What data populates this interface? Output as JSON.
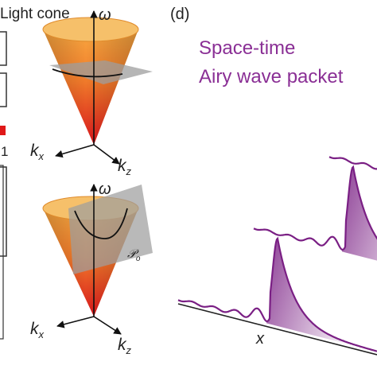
{
  "colors": {
    "packet_purple": "#7a1f84",
    "title_purple": "#8a2f95",
    "cone_top": "#f7a23a",
    "cone_bottom": "#dc1f1f",
    "plane_gray": "#9e9e9e",
    "colorbar_red": "#e01818"
  },
  "left_panel": {
    "light_cone_label": "Light cone",
    "omega_top": "ω",
    "kx_top": "k",
    "kx_top_sub": "x",
    "kz_top": "k",
    "kz_top_sub": "z",
    "omega_bottom": "ω",
    "plane_label": "𝒫",
    "plane_label_sub": "o",
    "kx_bottom": "k",
    "kx_bottom_sub": "x",
    "kz_bottom": "k",
    "kz_bottom_sub": "z",
    "edge_number": "1"
  },
  "right_panel": {
    "panel_label": "(d)",
    "title_line1": "Space-time",
    "title_line2": "Airy wave packet",
    "x_axis_label": "x"
  }
}
